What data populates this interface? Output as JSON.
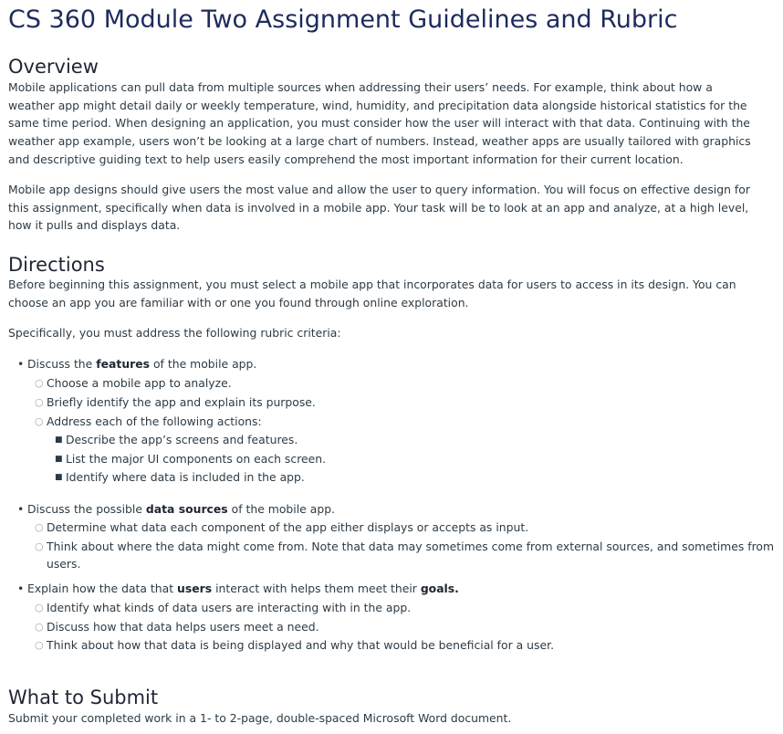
{
  "title": "CS 360 Module Two Assignment Guidelines and Rubric",
  "overview": {
    "heading": "Overview",
    "p1": "Mobile applications can pull data from multiple sources when addressing their users’ needs. For example, think about how a weather app might detail daily or weekly temperature, wind, humidity, and precipitation data alongside historical statistics for the same time period. When designing an application, you must consider how the user will interact with that data. Continuing with the weather app example, users won’t be looking at a large chart of numbers. Instead, weather apps are usually tailored with graphics and descriptive guiding text to help users easily comprehend the most important information for their current location.",
    "p2": "Mobile app designs should give users the most value and allow the user to query information. You will focus on effective design for this assignment, specifically when data is involved in a mobile app. Your task will be to look at an app and analyze, at a high level, how it pulls and displays data."
  },
  "directions": {
    "heading": "Directions",
    "p1": "Before beginning this assignment, you must select a mobile app that incorporates data for users to access in its design. You can choose an app you are familiar with or one you found through online exploration.",
    "p2": "Specifically, you must address the following rubric criteria:",
    "c1": {
      "pre": "Discuss the ",
      "bold": "features",
      "post": " of the mobile app.",
      "s1": "Choose a mobile app to analyze.",
      "s2": "Briefly identify the app and explain its purpose.",
      "s3": "Address each of the following actions:",
      "t1": "Describe the app’s screens and features.",
      "t2": "List the major UI components on each screen.",
      "t3": "Identify where data is included in the app."
    },
    "c2": {
      "pre": "Discuss the possible ",
      "bold": "data sources",
      "post": " of the mobile app.",
      "s1": "Determine what data each component of the app either displays or accepts as input.",
      "s2a": "Think about where the data might come from. Note that data may sometimes come from external sources, and sometimes from",
      "s2b": "users."
    },
    "c3": {
      "pre": "Explain how the data that ",
      "bold1": "users",
      "mid": " interact with helps them meet their ",
      "bold2": "goals.",
      "s1": "Identify what kinds of data users are interacting with in the app.",
      "s2": "Discuss how that data helps users meet a need.",
      "s3": "Think about how that data is being displayed and why that would be beneficial for a user."
    }
  },
  "submit": {
    "heading": "What to Submit",
    "p1": "Submit your completed work in a 1- to 2-page, double-spaced Microsoft Word document."
  }
}
